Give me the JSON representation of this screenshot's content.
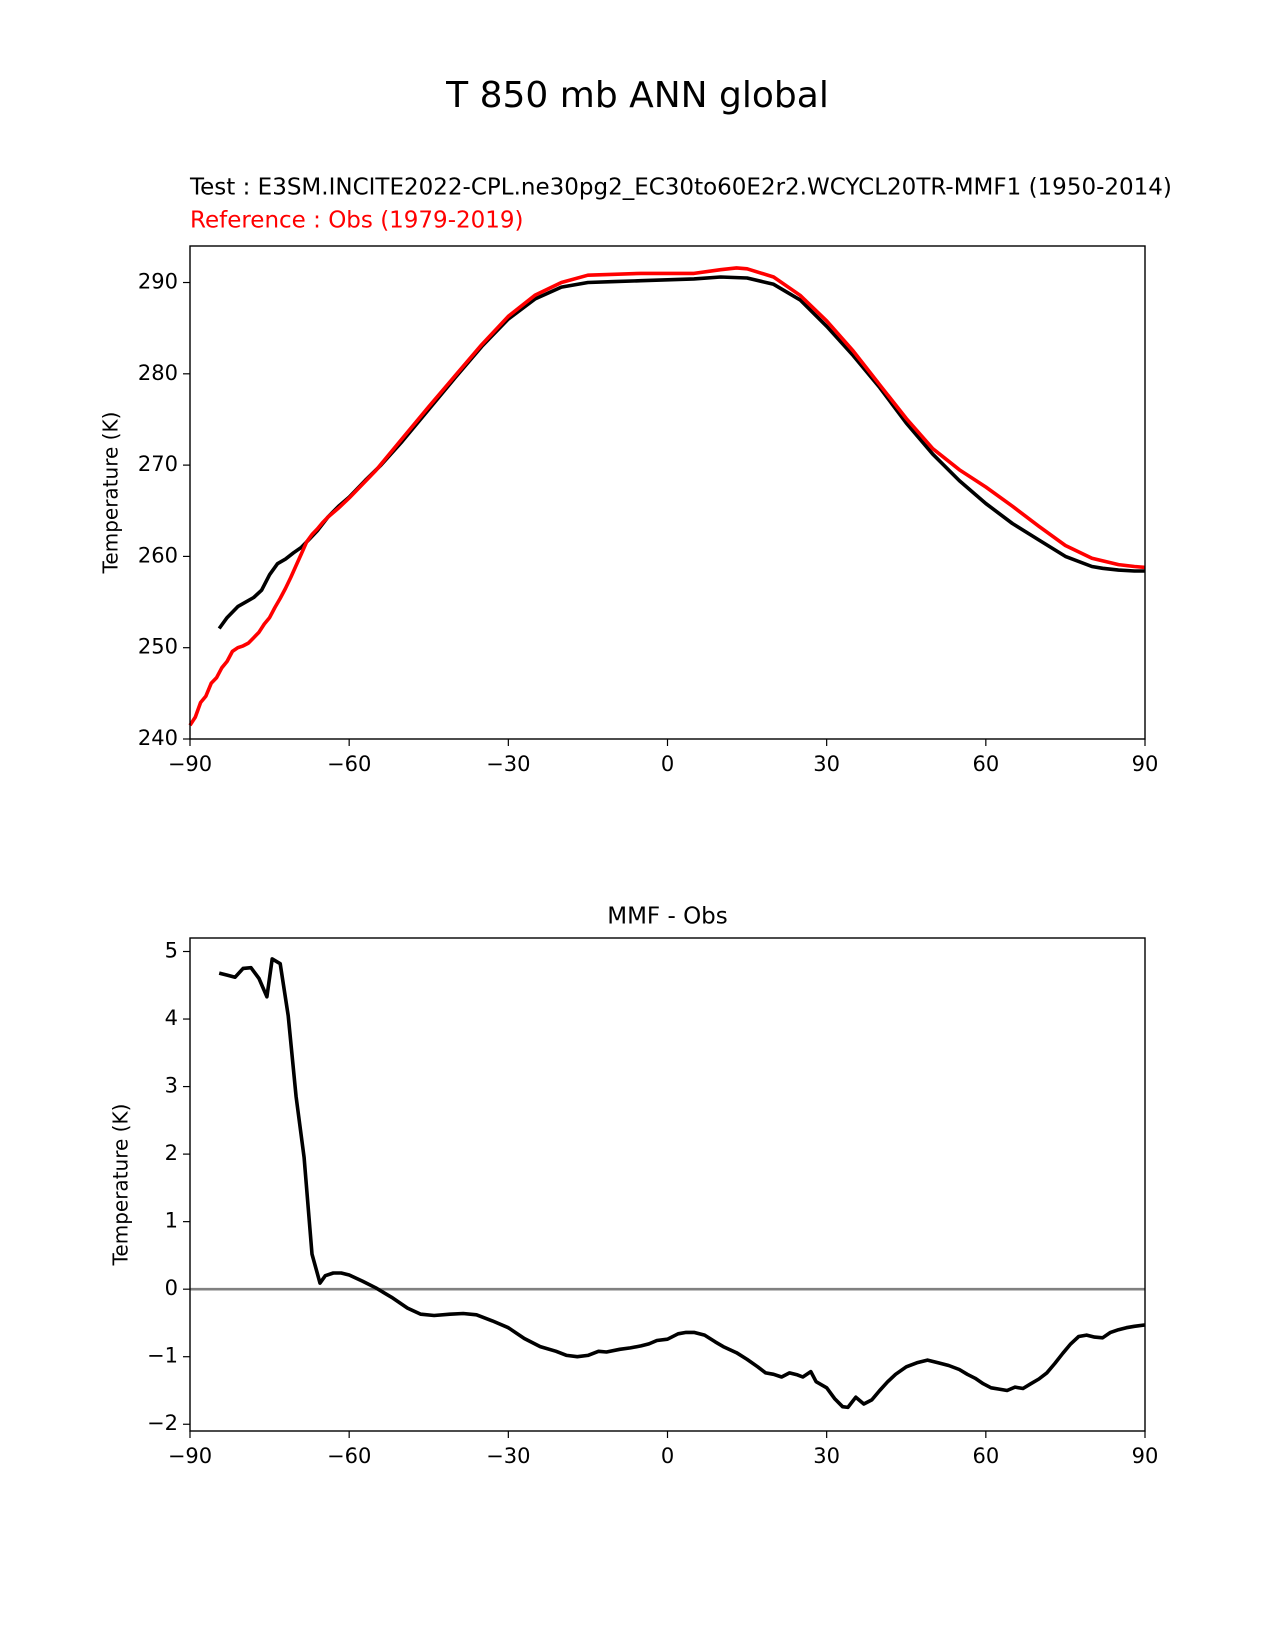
{
  "figure": {
    "suptitle": "T 850 mb ANN global",
    "test_label": "Test : E3SM.INCITE2022-CPL.ne30pg2_EC30to60E2r2.WCYCL20TR-MMF1 (1950-2014)",
    "reference_label": "Reference : Obs (1979-2019)",
    "colors": {
      "test": "#000000",
      "reference": "#ff0000",
      "zero_line": "#808080"
    }
  },
  "chart_data": [
    {
      "type": "line",
      "title": "",
      "xlabel": "",
      "ylabel": "Temperature (K)",
      "xlim": [
        -90,
        90
      ],
      "ylim": [
        240,
        294
      ],
      "xticks": [
        -90,
        -60,
        -30,
        0,
        30,
        60,
        90
      ],
      "xtick_labels": [
        "−90",
        "−60",
        "−30",
        "0",
        "30",
        "60",
        "90"
      ],
      "yticks": [
        240,
        250,
        260,
        270,
        280,
        290
      ],
      "ytick_labels": [
        "240",
        "250",
        "260",
        "270",
        "280",
        "290"
      ],
      "series": [
        {
          "name": "Test : E3SM.INCITE2022-CPL.ne30pg2_EC30to60E2r2.WCYCL20TR-MMF1 (1950-2014)",
          "color": "#000000",
          "x": [
            -84.5,
            -83,
            -81,
            -79.5,
            -78,
            -76.5,
            -75,
            -73.5,
            -72,
            -70.5,
            -69,
            -67.5,
            -66,
            -64,
            -62,
            -60,
            -57,
            -54,
            -50,
            -45,
            -40,
            -35,
            -30,
            -25,
            -20,
            -15,
            -10,
            -5,
            0,
            5,
            10,
            15,
            20,
            25,
            30,
            35,
            40,
            45,
            50,
            55,
            60,
            65,
            70,
            75,
            80,
            82,
            85,
            88,
            90
          ],
          "y": [
            252.1,
            253.3,
            254.5,
            255,
            255.5,
            256.3,
            258,
            259.2,
            259.7,
            260.4,
            261,
            261.9,
            262.8,
            264.3,
            265.5,
            266.5,
            268.3,
            270,
            272.6,
            276.1,
            279.6,
            283,
            286,
            288.2,
            289.5,
            290,
            290.1,
            290.2,
            290.3,
            290.4,
            290.6,
            290.5,
            289.8,
            288.1,
            285.2,
            282,
            278.5,
            274.6,
            271.2,
            268.3,
            265.8,
            263.6,
            261.8,
            260,
            258.9,
            258.7,
            258.5,
            258.4,
            258.4
          ]
        },
        {
          "name": "Reference : Obs (1979-2019)",
          "color": "#ff0000",
          "x": [
            -90,
            -89,
            -88,
            -87,
            -86,
            -85,
            -84,
            -83,
            -82,
            -81,
            -80,
            -79,
            -78,
            -77,
            -76,
            -75,
            -74,
            -73,
            -72,
            -71,
            -70,
            -69,
            -68,
            -67,
            -66,
            -65,
            -64,
            -62,
            -60,
            -55,
            -50,
            -45,
            -40,
            -35,
            -30,
            -25,
            -20,
            -15,
            -10,
            -5,
            0,
            5,
            10,
            13,
            15,
            20,
            25,
            30,
            35,
            40,
            45,
            50,
            55,
            60,
            65,
            70,
            75,
            80,
            85,
            88,
            90
          ],
          "y": [
            241.5,
            242.4,
            244,
            244.7,
            246.1,
            246.7,
            247.8,
            248.5,
            249.6,
            250,
            250.2,
            250.5,
            251.1,
            251.7,
            252.6,
            253.3,
            254.4,
            255.4,
            256.5,
            257.7,
            259,
            260.3,
            261.6,
            262.4,
            263,
            263.7,
            264.3,
            265.3,
            266.4,
            269.4,
            272.9,
            276.4,
            279.8,
            283.2,
            286.3,
            288.6,
            290,
            290.8,
            290.9,
            291,
            291,
            291,
            291.4,
            291.6,
            291.5,
            290.6,
            288.6,
            285.8,
            282.5,
            278.8,
            275.1,
            271.8,
            269.5,
            267.6,
            265.5,
            263.3,
            261.2,
            259.8,
            259.1,
            258.9,
            258.8
          ]
        }
      ]
    },
    {
      "type": "line",
      "title": "MMF - Obs",
      "xlabel": "",
      "ylabel": "Temperature (K)",
      "xlim": [
        -90,
        90
      ],
      "ylim": [
        -2.1,
        5.2
      ],
      "xticks": [
        -90,
        -60,
        -30,
        0,
        30,
        60,
        90
      ],
      "xtick_labels": [
        "−90",
        "−60",
        "−30",
        "0",
        "30",
        "60",
        "90"
      ],
      "yticks": [
        -2,
        -1,
        0,
        1,
        2,
        3,
        4,
        5
      ],
      "ytick_labels": [
        "−2",
        "−1",
        "0",
        "1",
        "2",
        "3",
        "4",
        "5"
      ],
      "zero_line": 0,
      "series": [
        {
          "name": "MMF - Obs",
          "color": "#000000",
          "x": [
            -84.5,
            -83,
            -81.5,
            -80,
            -78.5,
            -77,
            -75.5,
            -74.5,
            -73,
            -71.5,
            -70,
            -68.5,
            -67,
            -65.5,
            -64.5,
            -63,
            -61.5,
            -60,
            -57.5,
            -55,
            -52,
            -49,
            -46.5,
            -44,
            -41,
            -38.5,
            -36,
            -33,
            -30,
            -27,
            -24,
            -21,
            -19,
            -17,
            -15,
            -13,
            -11.5,
            -9,
            -7,
            -5,
            -3.5,
            -2,
            0,
            2,
            3.5,
            5,
            7,
            9,
            10.5,
            13,
            15,
            17,
            18.5,
            20,
            21.5,
            23,
            24.5,
            25.5,
            27,
            28,
            30,
            31.5,
            33,
            34,
            35.5,
            37,
            38.5,
            40,
            41.5,
            43,
            45,
            47,
            49,
            51,
            53,
            55,
            56.5,
            58,
            59.5,
            61,
            62.5,
            64,
            65.5,
            67,
            68.5,
            70,
            71.5,
            73,
            74.5,
            76,
            77.5,
            79,
            80.5,
            82,
            83.5,
            85,
            86.5,
            88,
            90
          ],
          "y": [
            4.68,
            4.65,
            4.62,
            4.75,
            4.76,
            4.6,
            4.33,
            4.89,
            4.82,
            4.05,
            2.85,
            1.95,
            0.52,
            0.09,
            0.2,
            0.24,
            0.24,
            0.21,
            0.12,
            0.02,
            -0.12,
            -0.28,
            -0.37,
            -0.39,
            -0.37,
            -0.36,
            -0.38,
            -0.47,
            -0.57,
            -0.73,
            -0.85,
            -0.92,
            -0.98,
            -1,
            -0.98,
            -0.92,
            -0.93,
            -0.89,
            -0.87,
            -0.84,
            -0.81,
            -0.76,
            -0.74,
            -0.66,
            -0.64,
            -0.64,
            -0.68,
            -0.78,
            -0.85,
            -0.94,
            -1.04,
            -1.15,
            -1.24,
            -1.26,
            -1.3,
            -1.24,
            -1.27,
            -1.3,
            -1.22,
            -1.37,
            -1.46,
            -1.62,
            -1.74,
            -1.75,
            -1.6,
            -1.7,
            -1.64,
            -1.5,
            -1.37,
            -1.26,
            -1.15,
            -1.09,
            -1.05,
            -1.09,
            -1.13,
            -1.19,
            -1.26,
            -1.32,
            -1.4,
            -1.46,
            -1.48,
            -1.5,
            -1.45,
            -1.47,
            -1.4,
            -1.33,
            -1.24,
            -1.1,
            -0.95,
            -0.81,
            -0.7,
            -0.68,
            -0.71,
            -0.72,
            -0.64,
            -0.6,
            -0.57,
            -0.55,
            -0.53
          ]
        }
      ]
    }
  ]
}
